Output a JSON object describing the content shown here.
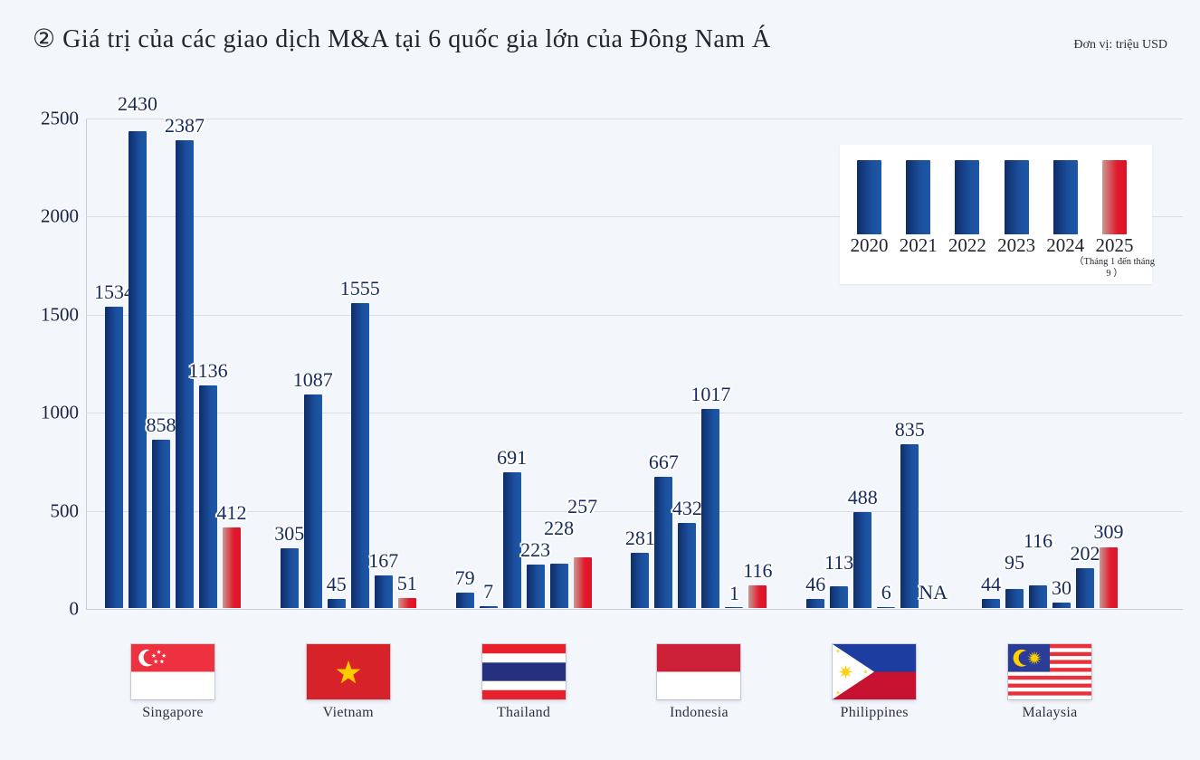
{
  "page": {
    "title": "②  Giá trị của các giao dịch M&A tại 6 quốc gia lớn của Đông Nam Á",
    "unit_note": "Đơn vị: triệu USD"
  },
  "colors": {
    "background": "#f3f6fa",
    "bar_blue_dark": "#0f2d68",
    "bar_blue_light": "#1d58a6",
    "bar_red_fade": "#c79a92",
    "bar_red": "#e11a2c",
    "value_label": "#152a5e",
    "axis_text": "#1b2340",
    "gridline": "#d8dde5",
    "legend_background": "#ffffff"
  },
  "legend": {
    "years": [
      "2020",
      "2021",
      "2022",
      "2023",
      "2024",
      "2025"
    ],
    "note_2025": "（Tháng 1 đến tháng 9 ）"
  },
  "chart_data": {
    "type": "bar",
    "title": "Giá trị của các giao dịch M&A tại 6 quốc gia lớn của Đông Nam Á",
    "unit": "triệu USD",
    "series_labels": [
      "2020",
      "2021",
      "2022",
      "2023",
      "2024",
      "2025"
    ],
    "highlight_series": "2025",
    "na_label": "NA",
    "ylim": [
      0,
      2500
    ],
    "yticks": [
      0,
      500,
      1000,
      1500,
      2000,
      2500
    ],
    "grid": true,
    "legend_position": "top-right",
    "groups": [
      {
        "country": "Singapore",
        "flag": "singapore",
        "values": [
          1534,
          2430,
          858,
          2387,
          1136,
          412
        ]
      },
      {
        "country": "Vietnam",
        "flag": "vietnam",
        "values": [
          305,
          1087,
          45,
          1555,
          167,
          51
        ]
      },
      {
        "country": "Thailand",
        "flag": "thailand",
        "values": [
          79,
          7,
          691,
          223,
          228,
          257
        ]
      },
      {
        "country": "Indonesia",
        "flag": "indonesia",
        "values": [
          281,
          667,
          432,
          1017,
          1,
          116
        ]
      },
      {
        "country": "Philippines",
        "flag": "philippines",
        "values": [
          46,
          113,
          488,
          6,
          835,
          null
        ]
      },
      {
        "country": "Malaysia",
        "flag": "malaysia",
        "values": [
          44,
          95,
          116,
          30,
          202,
          309
        ]
      }
    ]
  }
}
